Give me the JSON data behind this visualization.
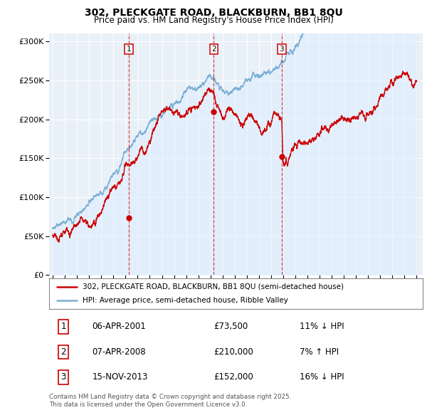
{
  "title_line1": "302, PLECKGATE ROAD, BLACKBURN, BB1 8QU",
  "title_line2": "Price paid vs. HM Land Registry's House Price Index (HPI)",
  "red_color": "#cc0000",
  "blue_color": "#7bafd4",
  "blue_fill": "#ddeeff",
  "xlim_start": 1994.7,
  "xlim_end": 2025.5,
  "ylim_min": 0,
  "ylim_max": 310000,
  "yticks": [
    0,
    50000,
    100000,
    150000,
    200000,
    250000,
    300000
  ],
  "ytick_labels": [
    "£0",
    "£50K",
    "£100K",
    "£150K",
    "£200K",
    "£250K",
    "£300K"
  ],
  "transactions": [
    {
      "num": 1,
      "date": 2001.27,
      "price": 73500,
      "label": "06-APR-2001",
      "amount": "£73,500",
      "hpi_pct": "11%",
      "hpi_dir": "↓"
    },
    {
      "num": 2,
      "date": 2008.27,
      "price": 210000,
      "label": "07-APR-2008",
      "amount": "£210,000",
      "hpi_pct": "7%",
      "hpi_dir": "↑"
    },
    {
      "num": 3,
      "date": 2013.88,
      "price": 152000,
      "label": "15-NOV-2013",
      "amount": "£152,000",
      "hpi_pct": "16%",
      "hpi_dir": "↓"
    }
  ],
  "legend_line1": "302, PLECKGATE ROAD, BLACKBURN, BB1 8QU (semi-detached house)",
  "legend_line2": "HPI: Average price, semi-detached house, Ribble Valley",
  "footnote": "Contains HM Land Registry data © Crown copyright and database right 2025.\nThis data is licensed under the Open Government Licence v3.0.",
  "bg_color": "#ffffff",
  "plot_bg": "#e8f0f8",
  "grid_color": "#ffffff"
}
